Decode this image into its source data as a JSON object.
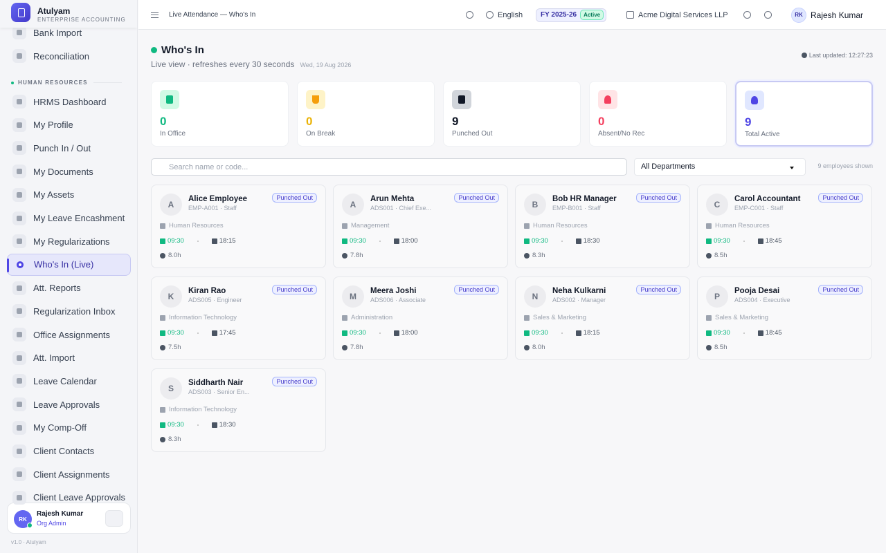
{
  "sidebar": {
    "brand": {
      "name": "Atulyam",
      "tagline": "ENTERPRISE ACCOUNTING"
    },
    "nav_top": [
      "Bank Import",
      "Reconciliation"
    ],
    "section": "HUMAN RESOURCES",
    "hr_items": [
      "HRMS Dashboard",
      "My Profile",
      "Punch In / Out",
      "My Documents",
      "My Assets",
      "My Leave Encashment",
      "My Regularizations",
      "Who's In (Live)",
      "Att. Reports",
      "Regularization Inbox",
      "Office Assignments",
      "Att. Import",
      "Leave Calendar",
      "Leave Approvals",
      "My Comp-Off",
      "Client Contacts",
      "Client Assignments",
      "Client Leave Approvals"
    ],
    "user": {
      "initials": "RK",
      "name": "Rajesh Kumar",
      "role": "Org Admin"
    },
    "version": "v1.0 · Atulyam"
  },
  "topbar": {
    "breadcrumb": "Live Attendance — Who's In",
    "language": "English",
    "fy": "FY 2025-26",
    "fy_status": "Active",
    "company": "Acme Digital Services LLP",
    "user": {
      "initials": "RK",
      "name": "Rajesh Kumar"
    }
  },
  "header": {
    "title": "Who's In",
    "subtitle": "Live view · refreshes every 30 seconds",
    "date": "Wed, 19 Aug 2026",
    "last_updated": "Last updated: 12:27:23"
  },
  "stats": [
    {
      "value": 0,
      "label": "In Office"
    },
    {
      "value": 0,
      "label": "On Break"
    },
    {
      "value": 9,
      "label": "Punched Out"
    },
    {
      "value": 0,
      "label": "Absent/No Rec"
    },
    {
      "value": 9,
      "label": "Total Active"
    }
  ],
  "filters": {
    "search_placeholder": "Search name or code...",
    "department": "All Departments",
    "count": "9 employees shown"
  },
  "employees": [
    {
      "initial": "A",
      "name": "Alice Employee",
      "code": "EMP-A001 · Staff",
      "status": "Punched Out",
      "department": "Human Resources",
      "in": "09:30",
      "out": "18:15",
      "hours": "8.0h"
    },
    {
      "initial": "A",
      "name": "Arun Mehta",
      "code": "ADS001 · Chief Exe...",
      "status": "Punched Out",
      "department": "Management",
      "in": "09:30",
      "out": "18:00",
      "hours": "7.8h"
    },
    {
      "initial": "B",
      "name": "Bob HR Manager",
      "code": "EMP-B001 · Staff",
      "status": "Punched Out",
      "department": "Human Resources",
      "in": "09:30",
      "out": "18:30",
      "hours": "8.3h"
    },
    {
      "initial": "C",
      "name": "Carol Accountant",
      "code": "EMP-C001 · Staff",
      "status": "Punched Out",
      "department": "Human Resources",
      "in": "09:30",
      "out": "18:45",
      "hours": "8.5h"
    },
    {
      "initial": "K",
      "name": "Kiran Rao",
      "code": "ADS005 · Engineer",
      "status": "Punched Out",
      "department": "Information Technology",
      "in": "09:30",
      "out": "17:45",
      "hours": "7.5h"
    },
    {
      "initial": "M",
      "name": "Meera Joshi",
      "code": "ADS006 · Associate",
      "status": "Punched Out",
      "department": "Administration",
      "in": "09:30",
      "out": "18:00",
      "hours": "7.8h"
    },
    {
      "initial": "N",
      "name": "Neha Kulkarni",
      "code": "ADS002 · Manager",
      "status": "Punched Out",
      "department": "Sales & Marketing",
      "in": "09:30",
      "out": "18:15",
      "hours": "8.0h"
    },
    {
      "initial": "P",
      "name": "Pooja Desai",
      "code": "ADS004 · Executive",
      "status": "Punched Out",
      "department": "Sales & Marketing",
      "in": "09:30",
      "out": "18:45",
      "hours": "8.5h"
    },
    {
      "initial": "S",
      "name": "Siddharth Nair",
      "code": "ADS003 · Senior En...",
      "status": "Punched Out",
      "department": "Information Technology",
      "in": "09:30",
      "out": "18:30",
      "hours": "8.3h"
    }
  ]
}
